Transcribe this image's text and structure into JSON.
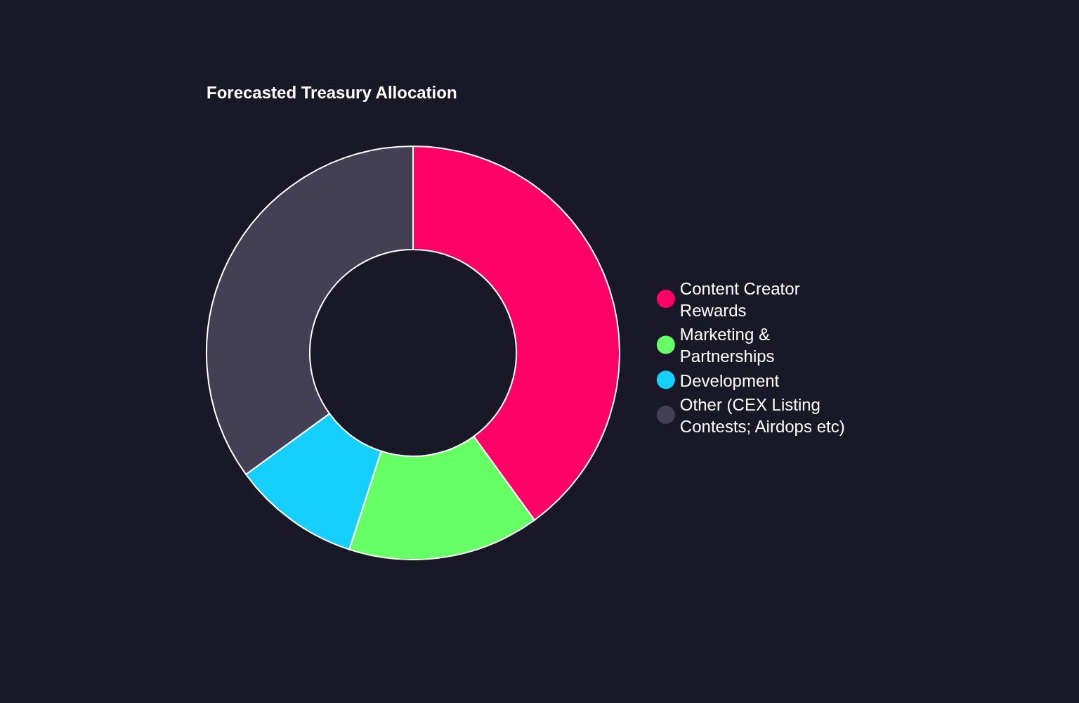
{
  "chart_data": {
    "type": "donut",
    "title": "Forecasted Treasury Allocation",
    "categories": [
      "Content Creator Rewards",
      "Marketing & Partnerships",
      "Development",
      "Other (CEX Listing Contests; Airdops etc)"
    ],
    "values": [
      40,
      15,
      10,
      35
    ],
    "colors": [
      "#ff0066",
      "#66ff66",
      "#15cfff",
      "#434055"
    ],
    "legend": "right"
  }
}
